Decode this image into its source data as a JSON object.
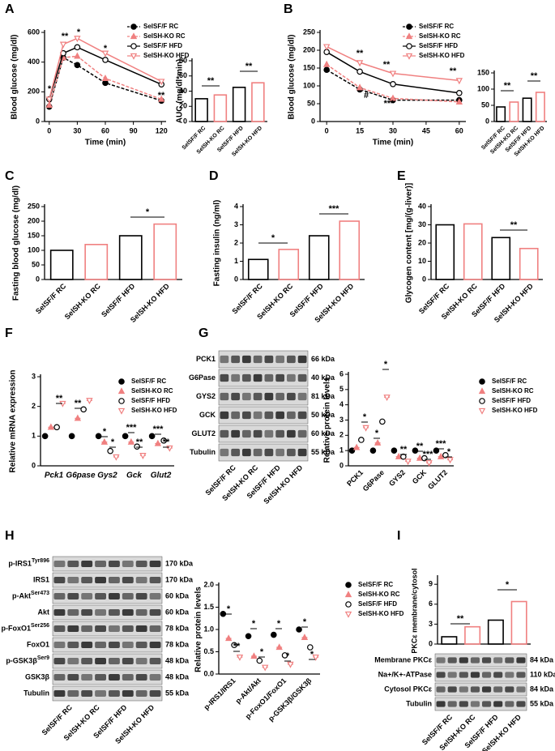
{
  "chart_data": [
    {
      "type": "line",
      "panel": "A",
      "xlabel": "Time (min)",
      "ylabel": "Blood glucose (mg/dl)",
      "x": [
        0,
        15,
        30,
        60,
        120
      ],
      "xlim": [
        -5,
        125
      ],
      "xticks": [
        0,
        30,
        60,
        90,
        120
      ],
      "ylim": [
        0,
        600
      ],
      "yticks": [
        0,
        200,
        400,
        600
      ],
      "series": [
        {
          "name": "SelSF/F RC",
          "color": "#000000",
          "marker": "circle-filled",
          "dashed": true,
          "values": [
            100,
            430,
            380,
            260,
            140
          ]
        },
        {
          "name": "SelSH-KO RC",
          "color": "#f08080",
          "marker": "triangle",
          "dashed": true,
          "values": [
            110,
            430,
            440,
            290,
            150
          ]
        },
        {
          "name": "SelSF/F HFD",
          "color": "#000000",
          "marker": "circle-open",
          "dashed": false,
          "values": [
            150,
            460,
            500,
            415,
            250
          ]
        },
        {
          "name": "SelSH-KO HFD",
          "color": "#f08080",
          "marker": "triangle-down",
          "dashed": false,
          "values": [
            150,
            520,
            560,
            460,
            270
          ]
        }
      ],
      "annotations": [
        "*",
        "**",
        "*",
        "*",
        "**"
      ]
    },
    {
      "type": "bar",
      "ylabel": "AUC (mg/dl*min)",
      "categories": [
        "SelSF/F RC",
        "SelSH-KO RC",
        "SelSF/F HFD",
        "SelSH-KO HFD"
      ],
      "values": [
        30,
        35,
        45,
        51
      ],
      "colors": [
        "#000000",
        "#f08080",
        "#000000",
        "#f08080"
      ],
      "ylim": [
        0,
        80
      ],
      "yticks": [
        0,
        20,
        40,
        60,
        80
      ],
      "annotations": [
        "**",
        "**"
      ]
    },
    {
      "type": "line",
      "panel": "B",
      "xlabel": "Time (min)",
      "ylabel": "Blood glucose (mg/dl)",
      "x": [
        0,
        15,
        30,
        60
      ],
      "xlim": [
        -3,
        63
      ],
      "xticks": [
        0,
        15,
        30,
        45,
        60
      ],
      "ylim": [
        0,
        250
      ],
      "yticks": [
        0,
        50,
        100,
        150,
        200,
        250
      ],
      "series": [
        {
          "name": "SelSF/F RC",
          "color": "#000000",
          "marker": "circle-filled",
          "dashed": true,
          "values": [
            145,
            90,
            60,
            60
          ]
        },
        {
          "name": "SelSH-KO RC",
          "color": "#f08080",
          "marker": "triangle",
          "dashed": true,
          "values": [
            160,
            95,
            65,
            55
          ]
        },
        {
          "name": "SelSF/F HFD",
          "color": "#000000",
          "marker": "circle-open",
          "dashed": false,
          "values": [
            195,
            140,
            105,
            80
          ]
        },
        {
          "name": "SelSH-KO HFD",
          "color": "#f08080",
          "marker": "triangle-down",
          "dashed": false,
          "values": [
            210,
            165,
            135,
            115
          ]
        }
      ],
      "annotations": [
        "**",
        "**",
        "**",
        "#",
        "***"
      ]
    },
    {
      "type": "bar",
      "categories": [
        "SelSF/F RC",
        "SelSH-KO RC",
        "SelSF/F HFD",
        "SelSH-KO HFD"
      ],
      "values": [
        45,
        60,
        72,
        90
      ],
      "colors": [
        "#000000",
        "#f08080",
        "#000000",
        "#f08080"
      ],
      "ylim": [
        0,
        150
      ],
      "yticks": [
        0,
        50,
        100,
        150
      ],
      "annotations": [
        "**",
        "**"
      ]
    },
    {
      "type": "bar",
      "panel": "C",
      "ylabel": "Fasting blood glucose (mg/dl)",
      "categories": [
        "SelSF/F RC",
        "SelSH-KO RC",
        "SelSF/F HFD",
        "SelSH-KO HFD"
      ],
      "values": [
        100,
        120,
        150,
        190
      ],
      "colors": [
        "#000000",
        "#f08080",
        "#000000",
        "#f08080"
      ],
      "ylim": [
        0,
        250
      ],
      "yticks": [
        0,
        50,
        100,
        150,
        200,
        250
      ],
      "annotations": [
        "*"
      ]
    },
    {
      "type": "bar",
      "panel": "D",
      "ylabel": "Fasting insulin (ng/ml)",
      "categories": [
        "SelSF/F RC",
        "SelSH-KO RC",
        "SelSF/F HFD",
        "SelSH-KO HFD"
      ],
      "values": [
        1.1,
        1.65,
        2.4,
        3.2
      ],
      "colors": [
        "#000000",
        "#f08080",
        "#000000",
        "#f08080"
      ],
      "ylim": [
        0,
        4
      ],
      "yticks": [
        0,
        1,
        2,
        3,
        4
      ],
      "annotations": [
        "*",
        "***"
      ]
    },
    {
      "type": "bar",
      "panel": "E",
      "ylabel": "Glycogen content [mg/(g-liver)]",
      "categories": [
        "SelSF/F RC",
        "SelSH-KO RC",
        "SelSF/F HFD",
        "SelSH-KO HFD"
      ],
      "values": [
        30,
        30.5,
        23,
        17
      ],
      "colors": [
        "#000000",
        "#f08080",
        "#000000",
        "#f08080"
      ],
      "ylim": [
        0,
        40
      ],
      "yticks": [
        0,
        10,
        20,
        30,
        40
      ],
      "annotations": [
        "**"
      ]
    },
    {
      "type": "dot",
      "panel": "F",
      "ylabel": "Relative mRNA expression",
      "categories": [
        "Pck1",
        "G6pase",
        "Gys2",
        "Gck",
        "Glut2"
      ],
      "ylim": [
        0,
        3
      ],
      "yticks": [
        0,
        1,
        2,
        3
      ],
      "series": [
        {
          "name": "SelSF/F RC",
          "color": "#000000",
          "marker": "circle-filled",
          "values": [
            1,
            1,
            1,
            1,
            1
          ]
        },
        {
          "name": "SelSH-KO RC",
          "color": "#f08080",
          "marker": "triangle",
          "values": [
            1.3,
            1.6,
            0.8,
            0.8,
            0.75
          ]
        },
        {
          "name": "SelSF/F HFD",
          "color": "#000000",
          "marker": "circle-open",
          "values": [
            1.3,
            1.9,
            0.5,
            0.65,
            0.85
          ]
        },
        {
          "name": "SelSH-KO HFD",
          "color": "#f08080",
          "marker": "triangle-down",
          "values": [
            2.1,
            2.2,
            0.3,
            0.35,
            0.6
          ]
        }
      ],
      "annotations": [
        "**",
        "**",
        "*",
        "*",
        "***",
        "**",
        "***",
        "**"
      ]
    },
    {
      "type": "dot",
      "panel": "G",
      "ylabel": "Relative protein levels",
      "categories": [
        "PCK1",
        "G6Pase",
        "GYS2",
        "GCK",
        "GLUT2"
      ],
      "ylim": [
        0,
        6
      ],
      "yticks": [
        0,
        1,
        2,
        3,
        4,
        5,
        6
      ],
      "series": [
        {
          "name": "SelSF/F RC",
          "color": "#000000",
          "marker": "circle-filled",
          "values": [
            1,
            1,
            1,
            1,
            1
          ]
        },
        {
          "name": "SelSH-KO RC",
          "color": "#f08080",
          "marker": "triangle",
          "values": [
            1.2,
            1.5,
            0.6,
            0.5,
            0.6
          ]
        },
        {
          "name": "SelSF/F HFD",
          "color": "#000000",
          "marker": "circle-open",
          "values": [
            1.7,
            2.9,
            0.6,
            0.5,
            0.7
          ]
        },
        {
          "name": "SelSH-KO HFD",
          "color": "#f08080",
          "marker": "triangle-down",
          "values": [
            2.5,
            4.5,
            0.3,
            0.2,
            0.4
          ]
        }
      ],
      "annotations": [
        "*",
        "*",
        "*",
        "**",
        "**",
        "***",
        "***",
        "*"
      ]
    },
    {
      "type": "dot",
      "panel": "H",
      "ylabel": "Relative protein levels",
      "categories": [
        "p-IRS1/IRS1",
        "p-Akt/Akt",
        "p-FoxO1/FoxO1",
        "p-GSK3β/GSK3β"
      ],
      "ylim": [
        0,
        2
      ],
      "yticks": [
        {
          "value": 0,
          "label": "0.0"
        },
        0.5,
        {
          "value": 1,
          "label": "1.0"
        },
        1.5,
        {
          "value": 2,
          "label": "2.0"
        }
      ],
      "series": [
        {
          "name": "SelSF/F RC",
          "color": "#000000",
          "marker": "circle-filled",
          "values": [
            1.35,
            0.85,
            0.88,
            1.0
          ]
        },
        {
          "name": "SelSH-KO RC",
          "color": "#f08080",
          "marker": "triangle",
          "values": [
            0.8,
            0.4,
            0.6,
            0.82
          ]
        },
        {
          "name": "SelSF/F HFD",
          "color": "#000000",
          "marker": "circle-open",
          "values": [
            0.65,
            0.3,
            0.42,
            0.6
          ]
        },
        {
          "name": "SelSH-KO HFD",
          "color": "#f08080",
          "marker": "triangle-down",
          "values": [
            0.38,
            0.15,
            0.22,
            0.38
          ]
        }
      ],
      "annotations": [
        "*",
        "**",
        "*",
        "*",
        "*",
        "*",
        "*",
        "*"
      ]
    },
    {
      "type": "bar",
      "panel": "I",
      "ylabel": "PKCε membrane/cytosol",
      "categories": [
        "SelSF/F RC",
        "SelSH-KO RC",
        "SelSF/F HFD",
        "SelSH-KO HFD"
      ],
      "values": [
        1.1,
        2.6,
        3.6,
        6.4
      ],
      "colors": [
        "#000000",
        "#f08080",
        "#000000",
        "#f08080"
      ],
      "ylim": [
        0,
        10
      ],
      "yticks": [
        0,
        3,
        6,
        9
      ],
      "annotations": [
        "**",
        "*"
      ]
    }
  ],
  "blots": [
    {
      "rows": [
        {
          "label": "PCK1",
          "size": "66 kDa"
        },
        {
          "label": "G6Pase",
          "size": "40 kDa"
        },
        {
          "label": "GYS2",
          "size": "81 kDa"
        },
        {
          "label": "GCK",
          "size": "50 kDa"
        },
        {
          "label": "GLUT2",
          "size": "60 kDa"
        },
        {
          "label": "Tubulin",
          "size": "55 kDa"
        }
      ],
      "lanes": [
        "SelSF/F RC",
        "SelSH-KO RC",
        "SelSF/F HFD",
        "SelSH-KO HFD"
      ]
    },
    {
      "rows": [
        {
          "label": "p-IRS1",
          "site": "Tyr896",
          "size": "170 kDa"
        },
        {
          "label": "IRS1",
          "size": "170 kDa"
        },
        {
          "label": "p-Akt",
          "site": "Ser473",
          "size": "60 kDa"
        },
        {
          "label": "Akt",
          "size": "60 kDa"
        },
        {
          "label": "p-FoxO1",
          "site": "Ser256",
          "size": "78 kDa"
        },
        {
          "label": "FoxO1",
          "size": "78 kDa"
        },
        {
          "label": "p-GSK3β",
          "site": "Ser9",
          "size": "48 kDa"
        },
        {
          "label": "GSK3β",
          "size": "48 kDa"
        },
        {
          "label": "Tubulin",
          "size": "55 kDa"
        }
      ],
      "lanes": [
        "SelSF/F RC",
        "SelSH-KO RC",
        "SelSF/F HFD",
        "SelSH-KO HFD"
      ]
    },
    {
      "rows": [
        {
          "label": "Membrane PKCε",
          "size": "84 kDa"
        },
        {
          "label": "Na+/K+-ATPase",
          "size": "110 kDa"
        },
        {
          "label": "Cytosol PKCε",
          "size": "84 kDa"
        },
        {
          "label": "Tubulin",
          "size": "55 kDa"
        }
      ]
    }
  ]
}
